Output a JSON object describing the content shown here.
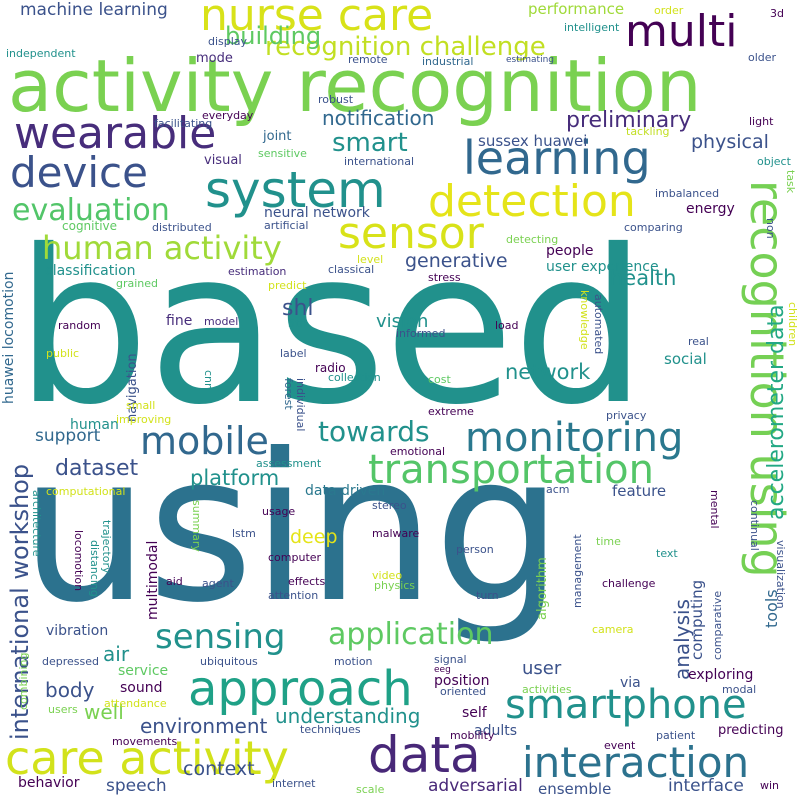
{
  "colors": {
    "background": "#ffffff",
    "purple_dark": "#440154",
    "indigo": "#3b528b",
    "teal": "#21918c",
    "green": "#5ec962",
    "yellow": "#fde725"
  },
  "words": [
    "based",
    "using",
    "activity recognition",
    "nurse care",
    "multi",
    "wearable",
    "system",
    "device",
    "learning",
    "recognition challenge",
    "recognition using",
    "sensor",
    "detection",
    "evaluation",
    "human activity",
    "mobile",
    "monitoring",
    "transportation",
    "approach",
    "data",
    "care activity",
    "interaction",
    "smartphone",
    "sensing",
    "application",
    "accelerometer data",
    "international workshop",
    "building",
    "machine learning",
    "performance",
    "smart",
    "notification",
    "preliminary",
    "physical",
    "health",
    "generative",
    "shl",
    "network",
    "towards",
    "platform",
    "dataset",
    "support",
    "body",
    "well",
    "environment",
    "understanding",
    "context",
    "speech",
    "adversarial",
    "ensemble",
    "interface",
    "vision",
    "deep",
    "data driven",
    "feature",
    "computing",
    "analysis",
    "exploring",
    "tools",
    "user",
    "user experience",
    "people",
    "energy",
    "air",
    "vibration",
    "service",
    "sound",
    "position",
    "huawei locomotion",
    "sussex huawei",
    "classification",
    "neural network",
    "cognitive",
    "fine",
    "social",
    "radio",
    "human",
    "mode",
    "display",
    "remote",
    "industrial",
    "intelligent",
    "estimating",
    "older",
    "3d",
    "order",
    "independent",
    "facilitating",
    "everyday",
    "robust",
    "light",
    "tackling",
    "joint",
    "sensitive",
    "international",
    "visual",
    "object",
    "imbalanced",
    "task",
    "distributed",
    "artificial",
    "comparing",
    "detecting",
    "non",
    "level",
    "estimation",
    "classical",
    "stress",
    "predict",
    "grained",
    "random",
    "model",
    "5th",
    "load",
    "informed",
    "knowledge",
    "automated",
    "children",
    "public",
    "real",
    "label",
    "collection",
    "cost",
    "cnn",
    "forest",
    "individual",
    "navigation",
    "small",
    "improving",
    "extreme",
    "privacy",
    "emotional",
    "assessment",
    "computational",
    "acm",
    "mental",
    "continual",
    "architecture",
    "stereo",
    "malware",
    "usage",
    "summary",
    "locomotion",
    "trajectory",
    "multimodal",
    "lstm",
    "computer",
    "distancing",
    "person",
    "text",
    "time",
    "management",
    "algorithm",
    "comparative",
    "visualization",
    "aid",
    "agent",
    "effects",
    "attention",
    "video",
    "physics",
    "challenge",
    "turn",
    "combining",
    "camera",
    "ubiquitous",
    "motion",
    "signal",
    "eeg",
    "depressed",
    "users",
    "attendance",
    "oriented",
    "activities",
    "via",
    "modal",
    "self",
    "adults",
    "movements",
    "techniques",
    "mobility",
    "event",
    "patient",
    "predicting",
    "behavior",
    "internet",
    "scale",
    "win"
  ]
}
